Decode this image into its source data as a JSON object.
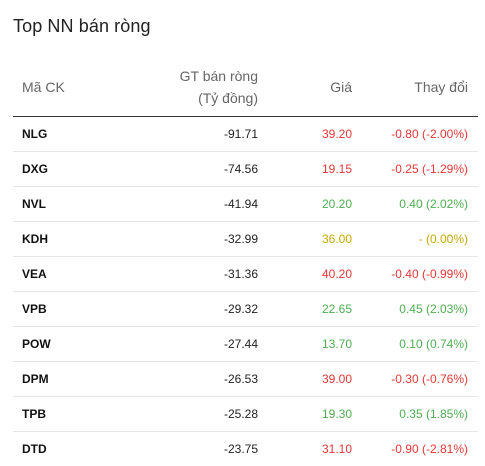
{
  "widget": {
    "title": "Top NN bán ròng"
  },
  "table": {
    "headers": {
      "symbol": "Mã CK",
      "value_line1": "GT bán ròng",
      "value_line2": "(Tỷ đồng)",
      "price": "Giá",
      "change": "Thay đổi"
    },
    "rows": [
      {
        "symbol": "NLG",
        "value": "-91.71",
        "price": "39.20",
        "change": "-0.80 (-2.00%)",
        "trend": "down"
      },
      {
        "symbol": "DXG",
        "value": "-74.56",
        "price": "19.15",
        "change": "-0.25 (-1.29%)",
        "trend": "down"
      },
      {
        "symbol": "NVL",
        "value": "-41.94",
        "price": "20.20",
        "change": "0.40 (2.02%)",
        "trend": "up"
      },
      {
        "symbol": "KDH",
        "value": "-32.99",
        "price": "36.00",
        "change": "- (0.00%)",
        "trend": "ref"
      },
      {
        "symbol": "VEA",
        "value": "-31.36",
        "price": "40.20",
        "change": "-0.40 (-0.99%)",
        "trend": "down"
      },
      {
        "symbol": "VPB",
        "value": "-29.32",
        "price": "22.65",
        "change": "0.45 (2.03%)",
        "trend": "up"
      },
      {
        "symbol": "POW",
        "value": "-27.44",
        "price": "13.70",
        "change": "0.10 (0.74%)",
        "trend": "up"
      },
      {
        "symbol": "DPM",
        "value": "-26.53",
        "price": "39.00",
        "change": "-0.30 (-0.76%)",
        "trend": "down"
      },
      {
        "symbol": "TPB",
        "value": "-25.28",
        "price": "19.30",
        "change": "0.35 (1.85%)",
        "trend": "up"
      },
      {
        "symbol": "DTD",
        "value": "-23.75",
        "price": "31.10",
        "change": "-0.90 (-2.81%)",
        "trend": "down"
      }
    ]
  },
  "colors": {
    "up": "#4caf50",
    "down": "#e53935",
    "ref": "#c9a800"
  }
}
